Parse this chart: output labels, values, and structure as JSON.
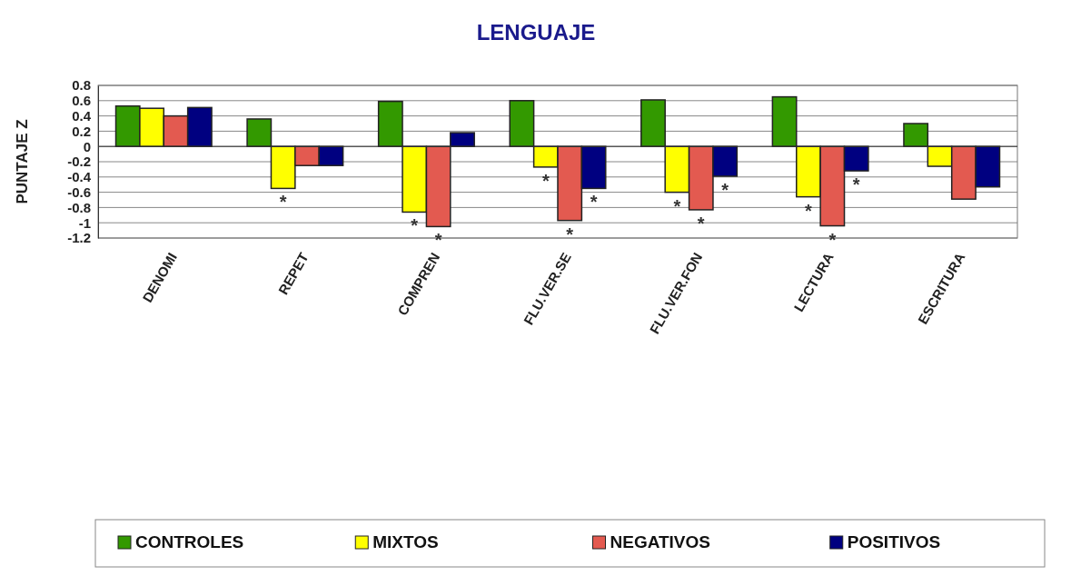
{
  "chart_data": {
    "type": "bar",
    "title": "LENGUAJE",
    "ylabel": "PUNTAJE Z",
    "categories": [
      "DENOMI",
      "REPET",
      "COMPREN",
      "FLU.VER.SE",
      "FLU.VER.FON",
      "LECTURA",
      "ESCRITURA"
    ],
    "series": [
      {
        "name": "CONTROLES",
        "color": "#339900",
        "values": [
          0.53,
          0.36,
          0.59,
          0.6,
          0.61,
          0.65,
          0.3
        ]
      },
      {
        "name": "MIXTOS",
        "color": "#ffff00",
        "values": [
          0.5,
          -0.55,
          -0.86,
          -0.27,
          -0.6,
          -0.66,
          -0.26
        ],
        "value_labels": [
          null,
          "*",
          "*",
          "*",
          "*",
          "*",
          null
        ]
      },
      {
        "name": "NEGATIVOS",
        "color": "#e35a50",
        "values": [
          0.4,
          -0.25,
          -1.05,
          -0.97,
          -0.83,
          -1.04,
          -0.69
        ],
        "value_labels": [
          null,
          null,
          "*",
          "*",
          "*",
          "*",
          null
        ]
      },
      {
        "name": "POSITIVOS",
        "color": "#000080",
        "values": [
          0.51,
          -0.25,
          0.18,
          -0.55,
          -0.39,
          -0.32,
          -0.53
        ],
        "value_labels": [
          null,
          null,
          null,
          "*",
          "*",
          "*",
          null
        ]
      }
    ],
    "ylim": [
      -1.2,
      0.8
    ],
    "yticks": [
      -1.2,
      -1,
      -0.8,
      -0.6,
      -0.4,
      -0.2,
      0,
      0.2,
      0.4,
      0.6,
      0.8
    ],
    "grid": "y",
    "legend": "bottom"
  }
}
